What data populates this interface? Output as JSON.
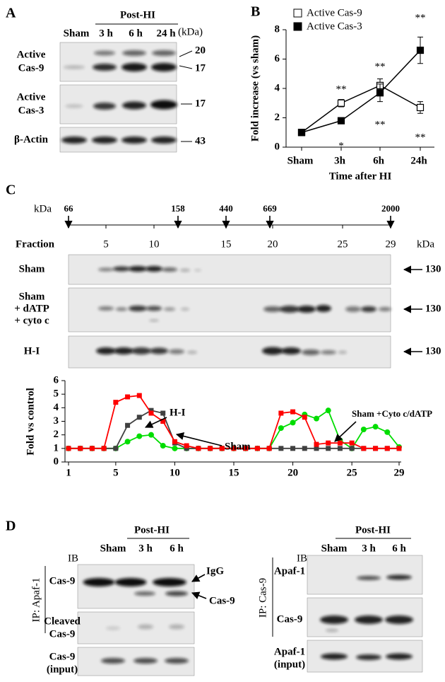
{
  "panel_a": {
    "label": "A",
    "group": "Post-HI",
    "lanes": [
      "Sham",
      "3 h",
      "6 h",
      "24 h"
    ],
    "unit": "(kDa)",
    "blots": [
      {
        "name": [
          "Active",
          "Cas-9"
        ],
        "sizes": [
          "20",
          "17"
        ]
      },
      {
        "name": [
          "Active",
          "Cas-3"
        ],
        "sizes": [
          "17"
        ]
      },
      {
        "name": [
          "β-Actin"
        ],
        "sizes": [
          "43"
        ]
      }
    ]
  },
  "panel_b": {
    "label": "B"
  },
  "panel_c": {
    "label": "C",
    "kda": "kDa",
    "markers": [
      "66",
      "158",
      "440",
      "669",
      "2000"
    ],
    "fraction": "Fraction",
    "fractions": [
      "5",
      "10",
      "15",
      "20",
      "25",
      "29"
    ],
    "unit": "kDa",
    "blots": [
      {
        "name": [
          "Sham"
        ],
        "size": "130"
      },
      {
        "name": [
          "Sham",
          "+ dATP",
          "+ cyto c"
        ],
        "size": "130"
      },
      {
        "name": [
          "H-I"
        ],
        "size": "130"
      }
    ]
  },
  "panel_d": {
    "label": "D",
    "left": {
      "group": "Post-HI",
      "lanes": [
        "Sham",
        "3 h",
        "6 h"
      ],
      "ib": "IB",
      "ip": "IP: Apaf-1",
      "arrows": [
        "IgG",
        "Cas-9"
      ],
      "blots": [
        {
          "name": [
            "Cas-9"
          ]
        },
        {
          "name": [
            "Cleaved",
            "Cas-9"
          ]
        },
        {
          "name": [
            "Cas-9",
            "(input)"
          ]
        }
      ]
    },
    "right": {
      "group": "Post-HI",
      "lanes": [
        "Sham",
        "3 h",
        "6 h"
      ],
      "ib": "IB",
      "ip": "IP: Cas-9",
      "blots": [
        {
          "name": [
            "Apaf-1"
          ]
        },
        {
          "name": [
            "Cas-9"
          ]
        },
        {
          "name": [
            "Apaf-1",
            "(input)"
          ]
        }
      ]
    }
  },
  "chart_data": [
    {
      "type": "line",
      "categories": [
        "Sham",
        "3h",
        "6h",
        "24h"
      ],
      "xlabel": "Time after HI",
      "ylabel": "Fold increase (vs sham)",
      "ylim": [
        0,
        8
      ],
      "yticks": [
        0,
        2,
        4,
        6,
        8
      ],
      "series": [
        {
          "name": "Active Cas-9",
          "color": "#000000",
          "marker": "open-square",
          "values": [
            1,
            3.0,
            4.2,
            2.7
          ],
          "errors": [
            0,
            0.25,
            0.45,
            0.4
          ]
        },
        {
          "name": "Active Cas-3",
          "color": "#000000",
          "marker": "filled-square",
          "values": [
            1,
            1.8,
            3.7,
            6.6
          ],
          "errors": [
            0,
            0.1,
            0.6,
            0.9
          ]
        }
      ],
      "annotations": [
        "**",
        "*",
        "**",
        "**",
        "**",
        "**"
      ]
    },
    {
      "type": "line",
      "x": [
        1,
        2,
        3,
        4,
        5,
        6,
        7,
        8,
        9,
        10,
        11,
        12,
        13,
        14,
        15,
        16,
        17,
        18,
        19,
        20,
        21,
        22,
        23,
        24,
        25,
        26,
        27,
        28,
        29
      ],
      "xlim": [
        1,
        29
      ],
      "xticks": [
        1,
        5,
        10,
        15,
        20,
        25,
        29
      ],
      "ylim": [
        0,
        6
      ],
      "yticks": [
        0,
        1,
        2,
        3,
        4,
        5,
        6
      ],
      "ylabel": "Fold vs control",
      "series": [
        {
          "name": "H-I",
          "color": "#ff0000",
          "marker": "square",
          "values": [
            1,
            1,
            1,
            1,
            4.4,
            4.8,
            4.9,
            3.6,
            3.0,
            1.5,
            1.2,
            1,
            1,
            1,
            1,
            1,
            1,
            1,
            3.6,
            3.7,
            3.3,
            1.3,
            1.4,
            1.4,
            1.4,
            1,
            1,
            1,
            1
          ]
        },
        {
          "name": "Sham",
          "color": "#404040",
          "marker": "square",
          "values": [
            1,
            1,
            1,
            1,
            1,
            2.7,
            3.3,
            3.8,
            3.6,
            1.4,
            1,
            1,
            1,
            1,
            1,
            1,
            1,
            1,
            1,
            1,
            1,
            1,
            1,
            1,
            1,
            1,
            1,
            1,
            1
          ]
        },
        {
          "name": "Sham +Cyto c/dATP",
          "color": "#00dd00",
          "marker": "circle",
          "values": [
            1,
            1,
            1,
            1,
            1,
            1.5,
            1.9,
            2.0,
            1.2,
            1,
            1,
            1,
            1,
            1,
            1,
            1,
            1,
            1,
            2.5,
            2.9,
            3.5,
            3.2,
            3.8,
            1.6,
            1,
            2.4,
            2.6,
            2.2,
            1.1
          ]
        }
      ]
    }
  ]
}
